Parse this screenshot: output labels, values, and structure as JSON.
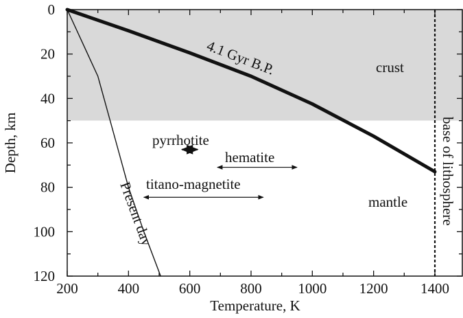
{
  "chart_data": {
    "type": "line",
    "xlabel": "Temperature, K",
    "ylabel": "Depth, km",
    "xlim": [
      200,
      1500
    ],
    "ylim": [
      120,
      0
    ],
    "x_ticks": [
      "200",
      "400",
      "600",
      "800",
      "1000",
      "1200",
      "1400"
    ],
    "y_ticks": [
      "0",
      "20",
      "40",
      "60",
      "80",
      "100",
      "120"
    ],
    "regions": [
      {
        "label": "crust",
        "depth_range": [
          0,
          50
        ],
        "color": "#d9d9d9"
      },
      {
        "label": "mantle",
        "depth_range": [
          50,
          120
        ],
        "color": "#ffffff"
      }
    ],
    "series": [
      {
        "name": "4.1 Gyr B.P.",
        "x": [
          200,
          400,
          600,
          800,
          1000,
          1200,
          1400
        ],
        "y": [
          0,
          9.5,
          19.5,
          30,
          42.5,
          57,
          73
        ]
      },
      {
        "name": "Present day",
        "x": [
          200,
          300,
          360,
          400,
          450,
          505
        ],
        "y": [
          0,
          30,
          60,
          80,
          100,
          120
        ]
      }
    ],
    "ranges": [
      {
        "label": "pyrrhotite",
        "x": [
          575,
          625
        ],
        "depth": 63
      },
      {
        "label": "hematite",
        "x": [
          690,
          950
        ],
        "depth": 71
      },
      {
        "label": "titano-magnetite",
        "x": [
          450,
          840
        ],
        "depth": 84.5
      }
    ],
    "vertical_line": {
      "label": "base of lithosphere",
      "x": 1400
    }
  }
}
